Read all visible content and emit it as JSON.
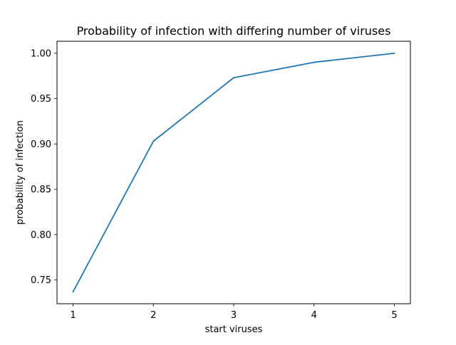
{
  "chart_data": {
    "type": "line",
    "title": "Probability of infection with differing number of viruses",
    "xlabel": "start viruses",
    "ylabel": "probability of infection",
    "x": [
      1,
      2,
      3,
      4,
      5
    ],
    "series": [
      {
        "values": [
          0.737,
          0.903,
          0.973,
          0.99,
          1.0
        ],
        "color": "#1f77b4"
      }
    ],
    "xlim": [
      0.8,
      5.2
    ],
    "ylim": [
      0.7238,
      1.0132
    ],
    "x_ticks": [
      1,
      2,
      3,
      4,
      5
    ],
    "x_tick_labels": [
      "1",
      "2",
      "3",
      "4",
      "5"
    ],
    "y_ticks": [
      0.75,
      0.8,
      0.85,
      0.9,
      0.95,
      1.0
    ],
    "y_tick_labels": [
      "0.75",
      "0.80",
      "0.85",
      "0.90",
      "0.95",
      "1.00"
    ],
    "grid": false,
    "legend": "none"
  }
}
